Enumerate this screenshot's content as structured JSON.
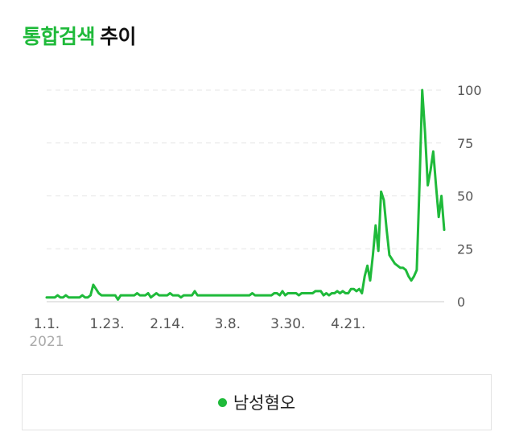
{
  "header": {
    "title_accent": "통합검색",
    "title_rest": "추이"
  },
  "colors": {
    "accent": "#1fba3a",
    "line": "#1fba3a",
    "grid": "#e5e5e5",
    "tick_text": "#555555",
    "year_text": "#aaaaaa"
  },
  "chart_data": {
    "type": "line",
    "title": "통합검색 추이",
    "x_tick_labels": [
      "1.1.",
      "1.23.",
      "2.14.",
      "3.8.",
      "3.30.",
      "4.21."
    ],
    "x_tick_index": [
      0,
      22,
      44,
      66,
      88,
      110
    ],
    "x_start_year": "2021",
    "y_ticks": [
      0,
      25,
      50,
      75,
      100
    ],
    "ylim": [
      0,
      100
    ],
    "grid": true,
    "y_axis_side": "right",
    "legend_position": "bottom",
    "series": [
      {
        "name": "남성혐오",
        "color": "#1fba3a",
        "values": [
          2,
          2,
          2,
          2,
          3,
          2,
          2,
          3,
          2,
          2,
          2,
          2,
          2,
          3,
          2,
          2,
          3,
          8,
          6,
          4,
          3,
          3,
          3,
          3,
          3,
          3,
          1,
          3,
          3,
          3,
          3,
          3,
          3,
          4,
          3,
          3,
          3,
          4,
          2,
          3,
          4,
          3,
          3,
          3,
          3,
          4,
          3,
          3,
          3,
          2,
          3,
          3,
          3,
          3,
          5,
          3,
          3,
          3,
          3,
          3,
          3,
          3,
          3,
          3,
          3,
          3,
          3,
          3,
          3,
          3,
          3,
          3,
          3,
          3,
          3,
          4,
          3,
          3,
          3,
          3,
          3,
          3,
          3,
          4,
          4,
          3,
          5,
          3,
          4,
          4,
          4,
          4,
          3,
          4,
          4,
          4,
          4,
          4,
          5,
          5,
          5,
          3,
          4,
          3,
          4,
          4,
          5,
          4,
          5,
          4,
          4,
          6,
          6,
          5,
          6,
          4,
          12,
          17,
          10,
          22,
          36,
          24,
          52,
          48,
          34,
          22,
          20,
          18,
          17,
          16,
          16,
          15,
          12,
          10,
          12,
          15,
          55,
          100,
          80,
          55,
          62,
          71,
          55,
          40,
          50,
          34
        ]
      }
    ]
  }
}
